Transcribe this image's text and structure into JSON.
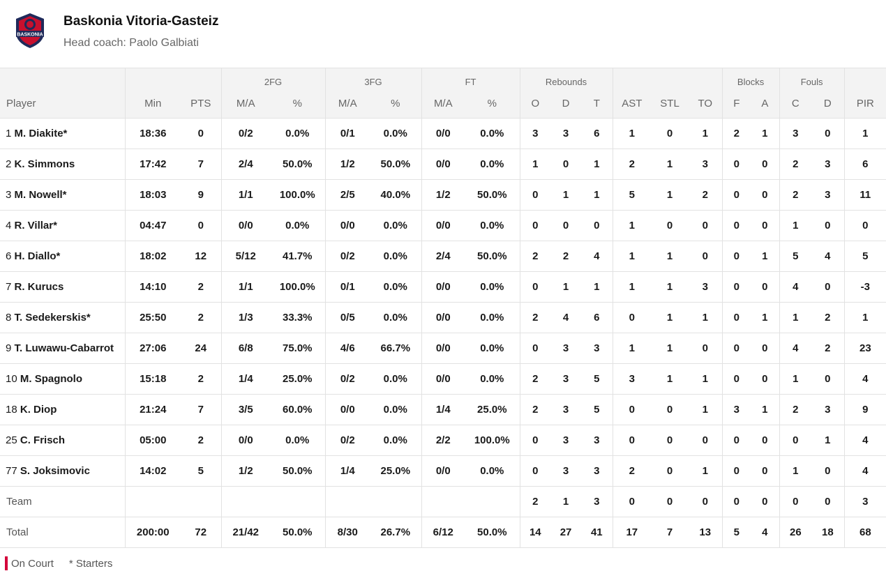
{
  "team": {
    "name": "Baskonia Vitoria-Gasteiz",
    "coach": "Head coach: Paolo Galbiati",
    "logo_text": "BASKONIA"
  },
  "colors": {
    "accent": "#d4003a",
    "logo_navy": "#1f2a5a",
    "logo_red": "#c8102e"
  },
  "groups": {
    "fg2": "2FG",
    "fg3": "3FG",
    "ft": "FT",
    "rebounds": "Rebounds",
    "blocks": "Blocks",
    "fouls": "Fouls"
  },
  "columns": [
    "Player",
    "Min",
    "PTS",
    "M/A",
    "%",
    "M/A",
    "%",
    "M/A",
    "%",
    "O",
    "D",
    "T",
    "AST",
    "STL",
    "TO",
    "F",
    "A",
    "C",
    "D",
    "PIR"
  ],
  "rows": [
    {
      "no": "1",
      "name": "M. Diakite*",
      "cells": [
        "18:36",
        "0",
        "0/2",
        "0.0%",
        "0/1",
        "0.0%",
        "0/0",
        "0.0%",
        "3",
        "3",
        "6",
        "1",
        "0",
        "1",
        "2",
        "1",
        "3",
        "0",
        "1"
      ]
    },
    {
      "no": "2",
      "name": "K. Simmons",
      "cells": [
        "17:42",
        "7",
        "2/4",
        "50.0%",
        "1/2",
        "50.0%",
        "0/0",
        "0.0%",
        "1",
        "0",
        "1",
        "2",
        "1",
        "3",
        "0",
        "0",
        "2",
        "3",
        "6"
      ]
    },
    {
      "no": "3",
      "name": "M. Nowell*",
      "cells": [
        "18:03",
        "9",
        "1/1",
        "100.0%",
        "2/5",
        "40.0%",
        "1/2",
        "50.0%",
        "0",
        "1",
        "1",
        "5",
        "1",
        "2",
        "0",
        "0",
        "2",
        "3",
        "11"
      ]
    },
    {
      "no": "4",
      "name": "R. Villar*",
      "cells": [
        "04:47",
        "0",
        "0/0",
        "0.0%",
        "0/0",
        "0.0%",
        "0/0",
        "0.0%",
        "0",
        "0",
        "0",
        "1",
        "0",
        "0",
        "0",
        "0",
        "1",
        "0",
        "0"
      ]
    },
    {
      "no": "6",
      "name": "H. Diallo*",
      "cells": [
        "18:02",
        "12",
        "5/12",
        "41.7%",
        "0/2",
        "0.0%",
        "2/4",
        "50.0%",
        "2",
        "2",
        "4",
        "1",
        "1",
        "0",
        "0",
        "1",
        "5",
        "4",
        "5"
      ]
    },
    {
      "no": "7",
      "name": "R. Kurucs",
      "cells": [
        "14:10",
        "2",
        "1/1",
        "100.0%",
        "0/1",
        "0.0%",
        "0/0",
        "0.0%",
        "0",
        "1",
        "1",
        "1",
        "1",
        "3",
        "0",
        "0",
        "4",
        "0",
        "-3"
      ]
    },
    {
      "no": "8",
      "name": "T. Sedekerskis*",
      "cells": [
        "25:50",
        "2",
        "1/3",
        "33.3%",
        "0/5",
        "0.0%",
        "0/0",
        "0.0%",
        "2",
        "4",
        "6",
        "0",
        "1",
        "1",
        "0",
        "1",
        "1",
        "2",
        "1"
      ]
    },
    {
      "no": "9",
      "name": "T. Luwawu-Cabarrot",
      "cells": [
        "27:06",
        "24",
        "6/8",
        "75.0%",
        "4/6",
        "66.7%",
        "0/0",
        "0.0%",
        "0",
        "3",
        "3",
        "1",
        "1",
        "0",
        "0",
        "0",
        "4",
        "2",
        "23"
      ]
    },
    {
      "no": "10",
      "name": "M. Spagnolo",
      "cells": [
        "15:18",
        "2",
        "1/4",
        "25.0%",
        "0/2",
        "0.0%",
        "0/0",
        "0.0%",
        "2",
        "3",
        "5",
        "3",
        "1",
        "1",
        "0",
        "0",
        "1",
        "0",
        "4"
      ]
    },
    {
      "no": "18",
      "name": "K. Diop",
      "cells": [
        "21:24",
        "7",
        "3/5",
        "60.0%",
        "0/0",
        "0.0%",
        "1/4",
        "25.0%",
        "2",
        "3",
        "5",
        "0",
        "0",
        "1",
        "3",
        "1",
        "2",
        "3",
        "9"
      ]
    },
    {
      "no": "25",
      "name": "C. Frisch",
      "cells": [
        "05:00",
        "2",
        "0/0",
        "0.0%",
        "0/2",
        "0.0%",
        "2/2",
        "100.0%",
        "0",
        "3",
        "3",
        "0",
        "0",
        "0",
        "0",
        "0",
        "0",
        "1",
        "4"
      ]
    },
    {
      "no": "77",
      "name": "S. Joksimovic",
      "cells": [
        "14:02",
        "5",
        "1/2",
        "50.0%",
        "1/4",
        "25.0%",
        "0/0",
        "0.0%",
        "0",
        "3",
        "3",
        "2",
        "0",
        "1",
        "0",
        "0",
        "1",
        "0",
        "4"
      ]
    }
  ],
  "team_row": {
    "label": "Team",
    "cells": [
      "",
      "",
      "",
      "",
      "",
      "",
      "",
      "",
      "2",
      "1",
      "3",
      "0",
      "0",
      "0",
      "0",
      "0",
      "0",
      "0",
      "3"
    ]
  },
  "total_row": {
    "label": "Total",
    "cells": [
      "200:00",
      "72",
      "21/42",
      "50.0%",
      "8/30",
      "26.7%",
      "6/12",
      "50.0%",
      "14",
      "27",
      "41",
      "17",
      "7",
      "13",
      "5",
      "4",
      "26",
      "18",
      "68"
    ]
  },
  "legend": {
    "on_court": "On Court",
    "starters": "* Starters"
  }
}
